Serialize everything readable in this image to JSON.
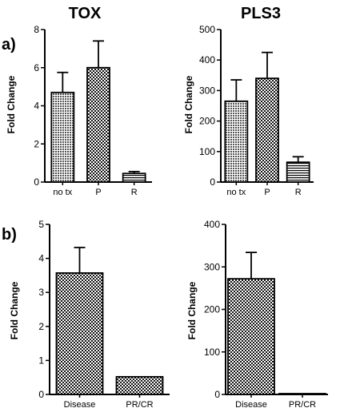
{
  "figure": {
    "genes": [
      "TOX",
      "PLS3"
    ],
    "panel_labels": [
      "a)",
      "b)"
    ]
  },
  "chart_data": [
    {
      "type": "bar",
      "title": "TOX",
      "panel": "a)",
      "ylabel": "Fold Change",
      "categories": [
        "no tx",
        "P",
        "R"
      ],
      "values": [
        4.7,
        6.0,
        0.45
      ],
      "errors": [
        1.05,
        1.4,
        0.1
      ],
      "patterns": [
        "dots",
        "checker",
        "hlines"
      ],
      "ylim": [
        0,
        8
      ],
      "yticks": [
        0,
        2,
        4,
        6,
        8
      ],
      "grid": false
    },
    {
      "type": "bar",
      "title": "PLS3",
      "panel": "a)",
      "ylabel": "Fold Change",
      "categories": [
        "no tx",
        "P",
        "R"
      ],
      "values": [
        265,
        340,
        65
      ],
      "errors": [
        70,
        85,
        18
      ],
      "patterns": [
        "dots",
        "checker",
        "hlines"
      ],
      "ylim": [
        0,
        500
      ],
      "yticks": [
        0,
        100,
        200,
        300,
        400,
        500
      ],
      "grid": false
    },
    {
      "type": "bar",
      "title": "TOX",
      "panel": "b)",
      "ylabel": "Fold Change",
      "categories": [
        "Disease",
        "PR/CR"
      ],
      "values": [
        3.57,
        0.52
      ],
      "errors": [
        0.75,
        0.0
      ],
      "patterns": [
        "checker",
        "checker"
      ],
      "ylim": [
        0,
        5
      ],
      "yticks": [
        0,
        1,
        2,
        3,
        4,
        5
      ],
      "grid": false
    },
    {
      "type": "bar",
      "title": "PLS3",
      "panel": "b)",
      "ylabel": "Fold Change",
      "categories": [
        "Disease",
        "PR/CR"
      ],
      "values": [
        272,
        1
      ],
      "errors": [
        62,
        0
      ],
      "patterns": [
        "checker",
        "checker"
      ],
      "ylim": [
        0,
        400
      ],
      "yticks": [
        0,
        100,
        200,
        300,
        400
      ],
      "grid": false
    }
  ]
}
